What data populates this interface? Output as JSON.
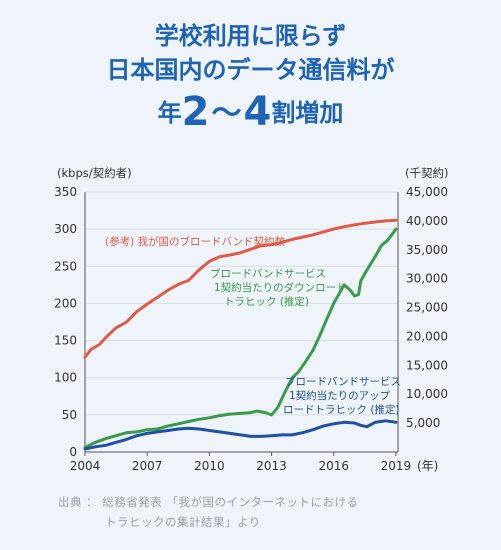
{
  "title": {
    "line1": "学校利用に限らず",
    "line2": "日本国内のデータ通信料が",
    "line3_pre": "年",
    "line3_a": "2",
    "line3_tilde": "～",
    "line3_b": "4",
    "line3_post": "割増加"
  },
  "source": {
    "line1": "出典 ： 総務省発表 「我が国のインターネットにおける",
    "line2": "トラヒックの集計結果」より"
  },
  "chart_data": {
    "type": "line",
    "left_axis_label": "(kbps/契約者)",
    "right_axis_label": "(千契約)",
    "x_unit_label": "(年)",
    "x_ticks": [
      2004,
      2007,
      2010,
      2013,
      2016,
      2019
    ],
    "y_left_ticks": [
      0,
      50,
      100,
      150,
      200,
      250,
      300,
      350
    ],
    "y_right_ticks": [
      "5,000",
      "10,000",
      "15,000",
      "20,000",
      "25,000",
      "30,000",
      "35,000",
      "40,000",
      "45,000"
    ],
    "y_left_range": [
      0,
      350
    ],
    "y_right_range": [
      0,
      45000
    ],
    "x_range": [
      2004,
      2019.1
    ],
    "series": [
      {
        "name": "(参考) 我が国のブロードバンド契約数",
        "axis": "right",
        "color": "#e05a47",
        "points": [
          [
            2004,
            16400
          ],
          [
            2004.3,
            17800
          ],
          [
            2004.7,
            18600
          ],
          [
            2005,
            19800
          ],
          [
            2005.5,
            21500
          ],
          [
            2006,
            22500
          ],
          [
            2006.5,
            24300
          ],
          [
            2007,
            25600
          ],
          [
            2007.5,
            26800
          ],
          [
            2008,
            28000
          ],
          [
            2008.5,
            29000
          ],
          [
            2009,
            29700
          ],
          [
            2009.5,
            31500
          ],
          [
            2010,
            33000
          ],
          [
            2010.5,
            33800
          ],
          [
            2011,
            34100
          ],
          [
            2011.5,
            34500
          ],
          [
            2012,
            35100
          ],
          [
            2012.5,
            35700
          ],
          [
            2013,
            35900
          ],
          [
            2013.5,
            36300
          ],
          [
            2014,
            36800
          ],
          [
            2014.5,
            37200
          ],
          [
            2015,
            37600
          ],
          [
            2015.5,
            38100
          ],
          [
            2016,
            38600
          ],
          [
            2016.5,
            39000
          ],
          [
            2017,
            39300
          ],
          [
            2017.5,
            39600
          ],
          [
            2018,
            39800
          ],
          [
            2018.5,
            40000
          ],
          [
            2019,
            40100
          ]
        ]
      },
      {
        "name": "ブロードバンドサービス1契約当たりのダウンロードトラヒック (推定)",
        "name_lines": [
          "ブロードバンドサービス",
          "1契約当たりのダウンロード",
          "トラヒック (推定)"
        ],
        "axis": "left",
        "color": "#3a9b49",
        "points": [
          [
            2004,
            6
          ],
          [
            2004.5,
            13
          ],
          [
            2005,
            18
          ],
          [
            2005.5,
            22
          ],
          [
            2006,
            26
          ],
          [
            2006.5,
            27
          ],
          [
            2007,
            30
          ],
          [
            2007.5,
            31
          ],
          [
            2008,
            35
          ],
          [
            2008.5,
            38
          ],
          [
            2009,
            41
          ],
          [
            2009.5,
            44
          ],
          [
            2010,
            46
          ],
          [
            2010.5,
            49
          ],
          [
            2011,
            51
          ],
          [
            2011.5,
            52
          ],
          [
            2012,
            53
          ],
          [
            2012.3,
            55
          ],
          [
            2012.7,
            53
          ],
          [
            2013,
            50
          ],
          [
            2013.3,
            60
          ],
          [
            2013.6,
            78
          ],
          [
            2014,
            100
          ],
          [
            2014.3,
            108
          ],
          [
            2014.6,
            120
          ],
          [
            2015,
            137
          ],
          [
            2015.3,
            155
          ],
          [
            2015.6,
            175
          ],
          [
            2016,
            200
          ],
          [
            2016.3,
            215
          ],
          [
            2016.5,
            225
          ],
          [
            2016.8,
            218
          ],
          [
            2017,
            210
          ],
          [
            2017.2,
            212
          ],
          [
            2017.3,
            230
          ],
          [
            2017.6,
            245
          ],
          [
            2018,
            263
          ],
          [
            2018.3,
            278
          ],
          [
            2018.6,
            285
          ],
          [
            2019,
            300
          ]
        ]
      },
      {
        "name": "ブロードバンドサービス1契約当たりのアップロードトラヒック (推定)",
        "name_lines": [
          "ブロードバンドサービス",
          "1契約当たりのアップ",
          "ロードトラヒック (推定)"
        ],
        "axis": "left",
        "color": "#1f4fa8",
        "points": [
          [
            2004,
            4
          ],
          [
            2004.5,
            7
          ],
          [
            2005,
            9
          ],
          [
            2005.5,
            13
          ],
          [
            2006,
            17
          ],
          [
            2006.5,
            22
          ],
          [
            2007,
            25
          ],
          [
            2007.5,
            27
          ],
          [
            2008,
            29
          ],
          [
            2008.5,
            31
          ],
          [
            2009,
            32
          ],
          [
            2009.5,
            31
          ],
          [
            2010,
            29
          ],
          [
            2010.5,
            27
          ],
          [
            2011,
            25
          ],
          [
            2011.5,
            23
          ],
          [
            2012,
            21
          ],
          [
            2012.5,
            21
          ],
          [
            2013,
            22
          ],
          [
            2013.5,
            23
          ],
          [
            2014,
            23
          ],
          [
            2014.5,
            26
          ],
          [
            2015,
            30
          ],
          [
            2015.5,
            35
          ],
          [
            2016,
            38
          ],
          [
            2016.5,
            40
          ],
          [
            2017,
            39
          ],
          [
            2017.3,
            36
          ],
          [
            2017.6,
            34
          ],
          [
            2018,
            40
          ],
          [
            2018.5,
            42
          ],
          [
            2019,
            40
          ]
        ]
      }
    ]
  }
}
